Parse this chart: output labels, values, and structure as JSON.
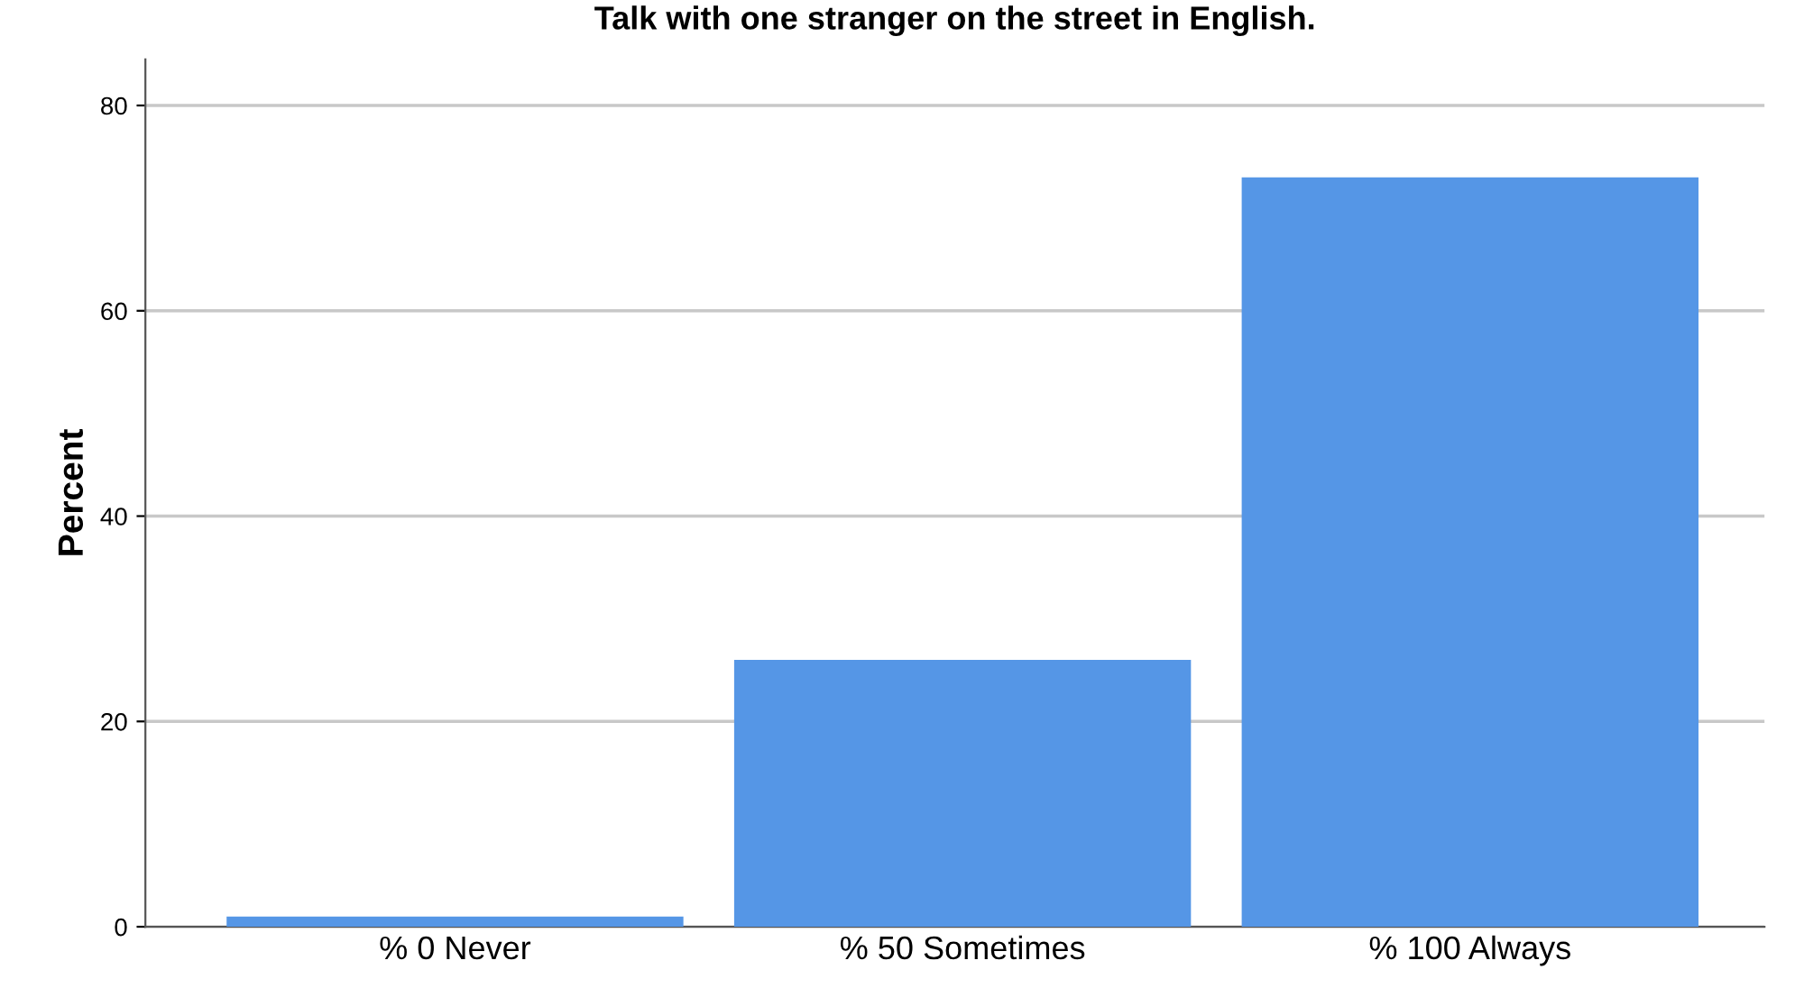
{
  "chart_data": {
    "type": "bar",
    "title": "Talk with one stranger on the street in English.",
    "ylabel": "Percent",
    "categories": [
      "% 0 Never",
      "% 50 Sometimes",
      "% 100 Always"
    ],
    "values": [
      1,
      26,
      73
    ],
    "color": "#5596e6",
    "ylim": [
      0,
      84.5
    ],
    "yticks": [
      0,
      20,
      40,
      60,
      80
    ],
    "grid": "y"
  }
}
